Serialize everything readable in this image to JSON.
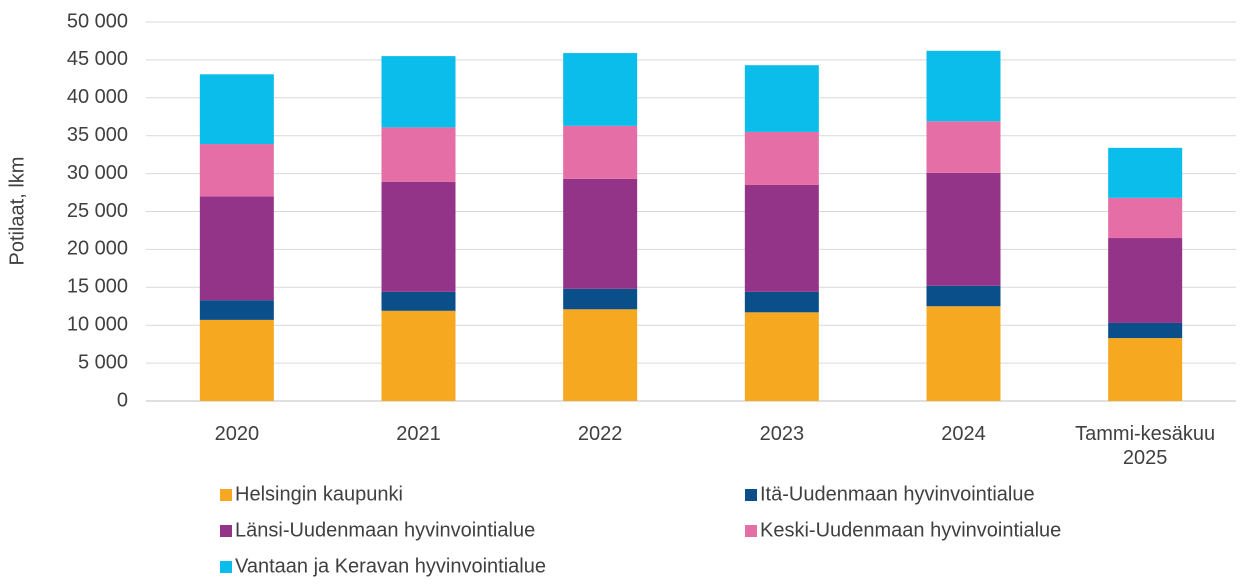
{
  "chart_data": {
    "type": "stacked_bar",
    "y_label": "Potilaat, lkm",
    "categories": [
      "2020",
      "2021",
      "2022",
      "2023",
      "2024",
      "Tammi-kesäkuu 2025"
    ],
    "series": [
      {
        "name": "Helsingin kaupunki",
        "color": "#f6a821",
        "values": [
          10700,
          11900,
          12100,
          11700,
          12500,
          8300
        ]
      },
      {
        "name": "Itä-Uudenmaan hyvinvointialue",
        "color": "#0b4f8a",
        "values": [
          2600,
          2500,
          2700,
          2700,
          2700,
          2000
        ]
      },
      {
        "name": "Länsi-Uudenmaan hyvinvointialue",
        "color": "#943489",
        "values": [
          13700,
          14500,
          14500,
          14100,
          14900,
          11200
        ]
      },
      {
        "name": "Keski-Uudenmaan hyvinvointialue",
        "color": "#e56ea6",
        "values": [
          6900,
          7200,
          7000,
          7000,
          6800,
          5300
        ]
      },
      {
        "name": "Vantaan ja Keravan hyvinvointialue",
        "color": "#0abdea",
        "values": [
          9200,
          9400,
          9600,
          8800,
          9300,
          6600
        ]
      }
    ],
    "ylim": [
      0,
      50000
    ],
    "yticks": [
      0,
      {
        "value": 5000,
        "label": "5 000"
      },
      {
        "value": 10000,
        "label": "10 000"
      },
      {
        "value": 15000,
        "label": "15 000"
      },
      {
        "value": 20000,
        "label": "20 000"
      },
      {
        "value": 25000,
        "label": "25 000"
      },
      {
        "value": 30000,
        "label": "30 000"
      },
      {
        "value": 35000,
        "label": "35 000"
      },
      {
        "value": 40000,
        "label": "40 000"
      },
      {
        "value": 45000,
        "label": "45 000"
      },
      {
        "value": 50000,
        "label": "50 000"
      }
    ],
    "grid": true,
    "legend": "bottom"
  }
}
